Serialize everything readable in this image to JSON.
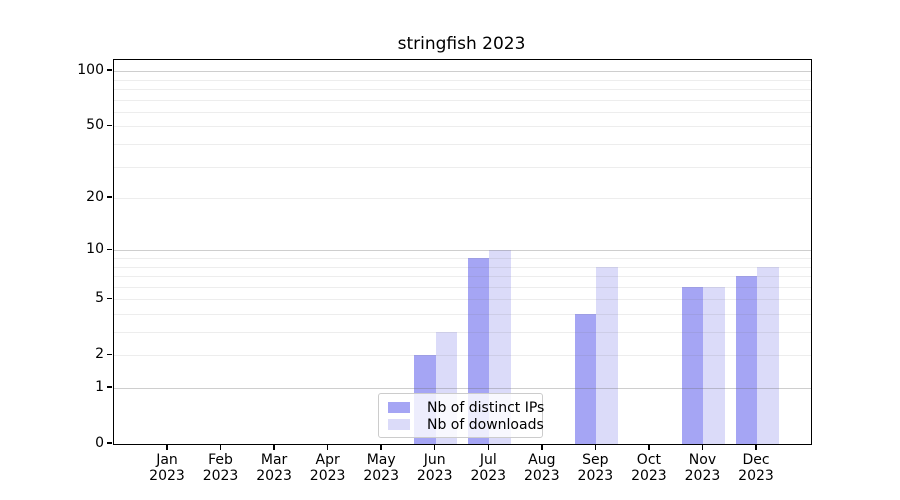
{
  "title": "stringfish 2023",
  "chart_data": {
    "type": "bar",
    "title": "stringfish 2023",
    "categories_line1": [
      "Jan",
      "Feb",
      "Mar",
      "Apr",
      "May",
      "Jun",
      "Jul",
      "Aug",
      "Sep",
      "Oct",
      "Nov",
      "Dec"
    ],
    "categories_line2": "2023",
    "series": [
      {
        "name": "Nb of distinct IPs",
        "color": "#a5a5f4",
        "values": [
          0,
          0,
          0,
          0,
          0,
          2,
          9,
          0,
          4,
          0,
          6,
          7
        ]
      },
      {
        "name": "Nb of downloads",
        "color": "#dbdbf9",
        "values": [
          0,
          0,
          0,
          0,
          0,
          3,
          10,
          0,
          8,
          0,
          6,
          8
        ]
      }
    ],
    "y_scale": "log1p",
    "ylim": [
      0,
      115
    ],
    "y_tick_labels": [
      0,
      1,
      2,
      5,
      10,
      20,
      50,
      100
    ],
    "y_grid_major": [
      1,
      10,
      100
    ],
    "y_grid_minor": [
      2,
      3,
      4,
      5,
      6,
      7,
      8,
      9,
      20,
      30,
      40,
      50,
      60,
      70,
      80,
      90
    ],
    "grid": true,
    "legend_position": "lower center"
  },
  "colors": {
    "grid_major": "rgba(110,110,110,0.34)",
    "grid_minor": "rgba(110,110,110,0.12)",
    "axis": "#000000",
    "legend_border": "#cccccc",
    "legend_background": "rgba(255,255,255,0.8)",
    "text": "#000000"
  }
}
